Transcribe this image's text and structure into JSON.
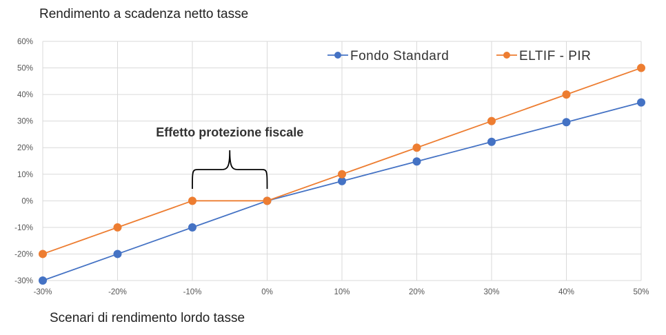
{
  "chart_data": {
    "type": "line",
    "title": "Rendimento a scadenza netto tasse",
    "xlabel": "Scenari di rendimento lordo tasse",
    "ylabel": "",
    "x": [
      "-30%",
      "-20%",
      "-10%",
      "0%",
      "10%",
      "20%",
      "30%",
      "40%",
      "50%"
    ],
    "x_values": [
      -30,
      -20,
      -10,
      0,
      10,
      20,
      30,
      40,
      50
    ],
    "xlim": [
      -30,
      50
    ],
    "ylim": [
      -30,
      60
    ],
    "y_ticks": [
      "-30%",
      "-20%",
      "-10%",
      "0%",
      "10%",
      "20%",
      "30%",
      "40%",
      "50%",
      "60%"
    ],
    "y_tick_values": [
      -30,
      -20,
      -10,
      0,
      10,
      20,
      30,
      40,
      50,
      60
    ],
    "grid": true,
    "legend_position": "top-right",
    "series": [
      {
        "name": "Fondo Standard",
        "color": "#4472C4",
        "values": [
          -30,
          -20,
          -10,
          0,
          7.4,
          14.8,
          22.2,
          29.6,
          37
        ]
      },
      {
        "name": "ELTIF - PIR",
        "color": "#ED7D31",
        "values": [
          -20,
          -10,
          0,
          0,
          10,
          20,
          30,
          40,
          50
        ]
      }
    ],
    "annotation": {
      "text": "Effetto protezione fiscale",
      "x_range": [
        -10,
        0
      ]
    }
  }
}
